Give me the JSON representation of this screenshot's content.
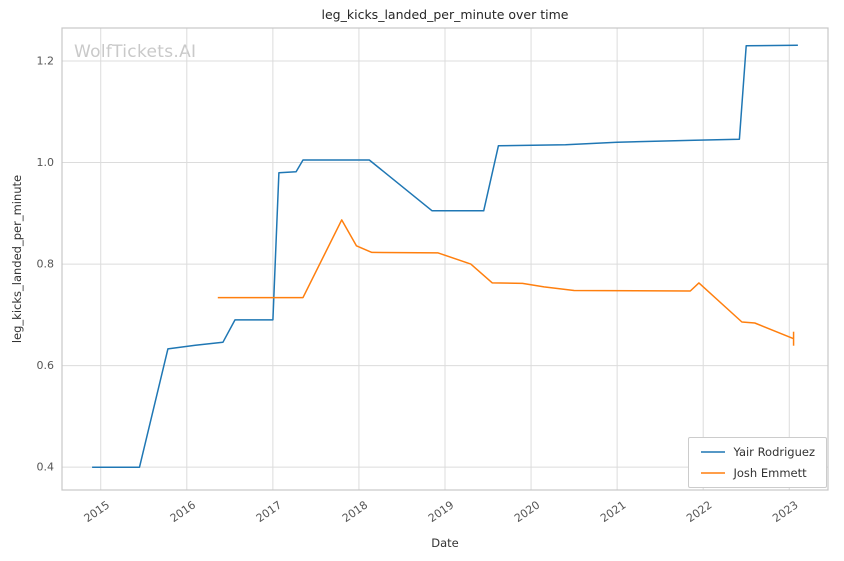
{
  "watermark": {
    "text": "WolfTickets.AI"
  },
  "chart_data": {
    "type": "line",
    "title": "leg_kicks_landed_per_minute over time",
    "xlabel": "Date",
    "ylabel": "leg_kicks_landed_per_minute",
    "xlim": [
      2014.55,
      2023.45
    ],
    "ylim": [
      0.355,
      1.265
    ],
    "grid": true,
    "legend_position": "lower right",
    "colors": {
      "grid": "#dcdcdc",
      "spine": "#c7c7c7",
      "tick_label": "#555555",
      "watermark": "#c9c9c9"
    },
    "x_ticks": [
      {
        "value": 2015,
        "label": "2015"
      },
      {
        "value": 2016,
        "label": "2016"
      },
      {
        "value": 2017,
        "label": "2017"
      },
      {
        "value": 2018,
        "label": "2018"
      },
      {
        "value": 2019,
        "label": "2019"
      },
      {
        "value": 2020,
        "label": "2020"
      },
      {
        "value": 2021,
        "label": "2021"
      },
      {
        "value": 2022,
        "label": "2022"
      },
      {
        "value": 2023,
        "label": "2023"
      }
    ],
    "y_ticks": [
      {
        "value": 0.4,
        "label": "0.4"
      },
      {
        "value": 0.6,
        "label": "0.6"
      },
      {
        "value": 0.8,
        "label": "0.8"
      },
      {
        "value": 1.0,
        "label": "1.0"
      },
      {
        "value": 1.2,
        "label": "1.2"
      }
    ],
    "series": [
      {
        "id": "yair-rodriguez",
        "name": "Yair Rodriguez",
        "color": "#1f77b4",
        "end_cap": false,
        "points": [
          [
            2014.9,
            0.4
          ],
          [
            2015.45,
            0.4
          ],
          [
            2015.78,
            0.633
          ],
          [
            2016.1,
            0.64
          ],
          [
            2016.42,
            0.646
          ],
          [
            2016.56,
            0.69
          ],
          [
            2017.0,
            0.69
          ],
          [
            2017.07,
            0.98
          ],
          [
            2017.27,
            0.982
          ],
          [
            2017.35,
            1.005
          ],
          [
            2018.12,
            1.005
          ],
          [
            2018.85,
            0.905
          ],
          [
            2019.45,
            0.905
          ],
          [
            2019.62,
            1.033
          ],
          [
            2020.4,
            1.035
          ],
          [
            2021.0,
            1.04
          ],
          [
            2021.9,
            1.044
          ],
          [
            2022.42,
            1.046
          ],
          [
            2022.5,
            1.23
          ],
          [
            2023.1,
            1.231
          ]
        ]
      },
      {
        "id": "josh-emmett",
        "name": "Josh Emmett",
        "color": "#ff7f0e",
        "end_cap": true,
        "points": [
          [
            2016.36,
            0.734
          ],
          [
            2017.0,
            0.734
          ],
          [
            2017.35,
            0.734
          ],
          [
            2017.8,
            0.887
          ],
          [
            2017.97,
            0.836
          ],
          [
            2018.15,
            0.823
          ],
          [
            2018.92,
            0.822
          ],
          [
            2019.3,
            0.8
          ],
          [
            2019.55,
            0.763
          ],
          [
            2019.9,
            0.762
          ],
          [
            2020.15,
            0.755
          ],
          [
            2020.5,
            0.748
          ],
          [
            2021.85,
            0.747
          ],
          [
            2021.95,
            0.763
          ],
          [
            2022.45,
            0.686
          ],
          [
            2022.6,
            0.684
          ],
          [
            2023.05,
            0.653
          ]
        ]
      }
    ]
  }
}
